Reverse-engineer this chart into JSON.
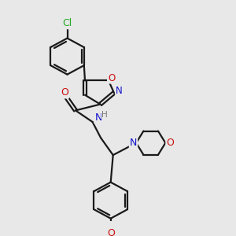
{
  "background_color": "#e8e8e8",
  "bond_color": "#1a1a1a",
  "bond_width": 1.6,
  "atom_colors": {
    "N": "#1010cc",
    "O": "#cc1010",
    "Cl": "#22aa22",
    "H": "#777777"
  },
  "font_size": 8.5,
  "fig_size": [
    3.0,
    3.0
  ],
  "dpi": 100
}
